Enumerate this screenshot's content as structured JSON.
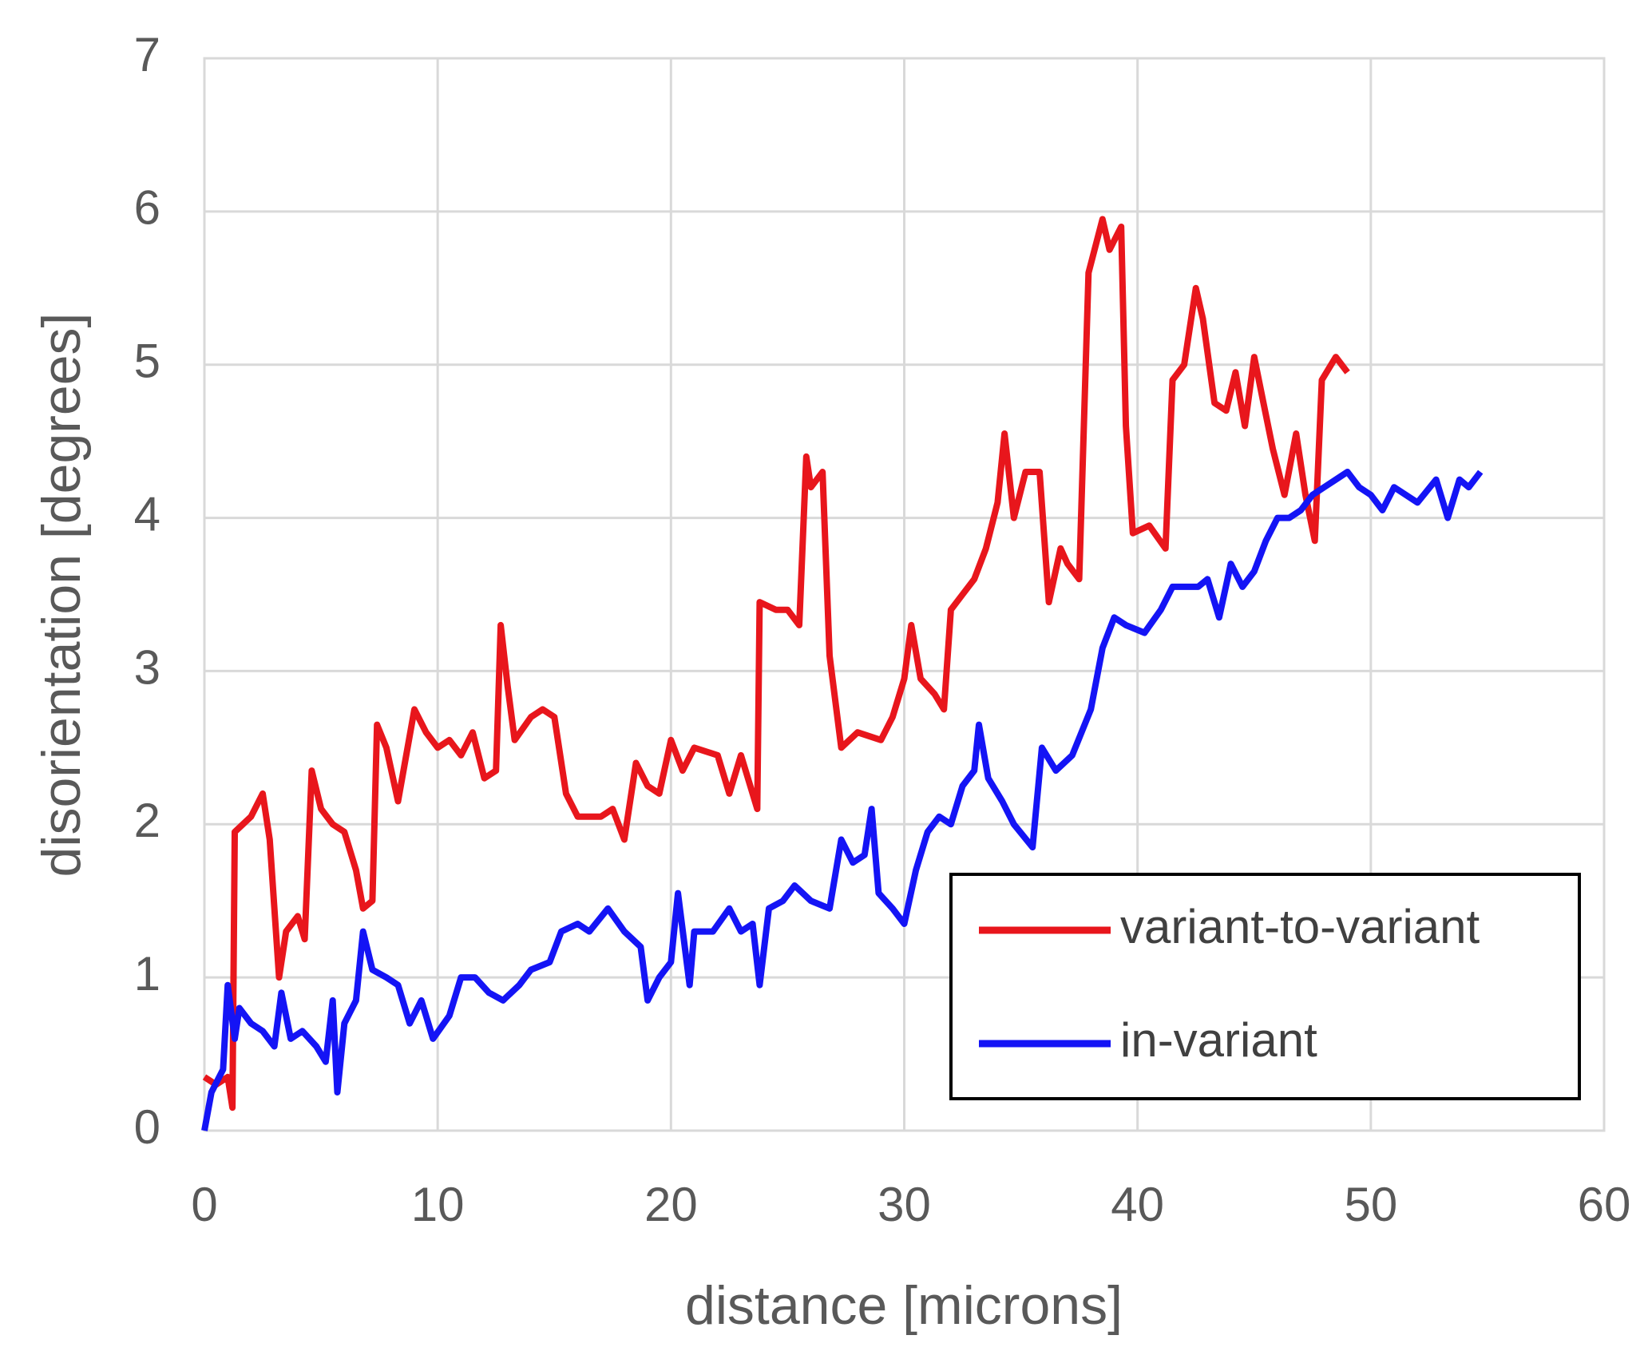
{
  "chart_data": {
    "type": "line",
    "xlabel": "distance [microns]",
    "ylabel": "disorientation [degrees]",
    "xlim": [
      0,
      60
    ],
    "xticks": [
      0,
      10,
      20,
      30,
      40,
      50,
      60
    ],
    "ylim": [
      0,
      7
    ],
    "yticks": [
      0,
      1,
      2,
      3,
      4,
      5,
      6,
      7
    ],
    "grid": true,
    "legend": "lower right",
    "series": [
      {
        "name": "variant-to-variant",
        "color": "#e8161c",
        "x": [
          0,
          0.5,
          1,
          1.2,
          1.3,
          2,
          2.5,
          2.8,
          3.2,
          3.5,
          4,
          4.3,
          4.6,
          5,
          5.5,
          6,
          6.5,
          6.8,
          7.2,
          7.4,
          7.8,
          8.3,
          9,
          9.5,
          10,
          10.5,
          11,
          11.5,
          12,
          12.5,
          12.7,
          13,
          13.3,
          14,
          14.5,
          15,
          15.5,
          16,
          17,
          17.5,
          18,
          18.5,
          19,
          19.5,
          20,
          20.5,
          21,
          22,
          22.5,
          23,
          23.7,
          23.8,
          24.5,
          25,
          25.5,
          25.8,
          26,
          26.5,
          26.8,
          27.3,
          28,
          29,
          29.5,
          30,
          30.3,
          30.7,
          31.3,
          31.7,
          32,
          32.5,
          33,
          33.5,
          34,
          34.3,
          34.7,
          35.2,
          35.8,
          36.2,
          36.7,
          37,
          37.5,
          37.9,
          38.5,
          38.8,
          39.3,
          39.5,
          39.8,
          40.5,
          41.2,
          41.5,
          42,
          42.5,
          42.8,
          43.3,
          43.8,
          44.2,
          44.6,
          45,
          45.4,
          45.8,
          46.3,
          46.8,
          47.2,
          47.6,
          47.9,
          48.5,
          49
        ],
        "values": [
          0.35,
          0.3,
          0.35,
          0.15,
          1.95,
          2.05,
          2.2,
          1.9,
          1.0,
          1.3,
          1.4,
          1.25,
          2.35,
          2.1,
          2.0,
          1.95,
          1.7,
          1.45,
          1.5,
          2.65,
          2.5,
          2.15,
          2.75,
          2.6,
          2.5,
          2.55,
          2.45,
          2.6,
          2.3,
          2.35,
          3.3,
          2.9,
          2.55,
          2.7,
          2.75,
          2.7,
          2.2,
          2.05,
          2.05,
          2.1,
          1.9,
          2.4,
          2.25,
          2.2,
          2.55,
          2.35,
          2.5,
          2.45,
          2.2,
          2.45,
          2.1,
          3.45,
          3.4,
          3.4,
          3.3,
          4.4,
          4.2,
          4.3,
          3.1,
          2.5,
          2.6,
          2.55,
          2.7,
          2.95,
          3.3,
          2.95,
          2.85,
          2.75,
          3.4,
          3.5,
          3.6,
          3.8,
          4.1,
          4.55,
          4.0,
          4.3,
          4.3,
          3.45,
          3.8,
          3.7,
          3.6,
          5.6,
          5.95,
          5.75,
          5.9,
          4.6,
          3.9,
          3.95,
          3.8,
          4.9,
          5.0,
          5.5,
          5.3,
          4.75,
          4.7,
          4.95,
          4.6,
          5.05,
          4.75,
          4.45,
          4.15,
          4.55,
          4.15,
          3.85,
          4.9,
          5.05,
          4.95
        ]
      },
      {
        "name": "in-variant",
        "color": "#1414f5",
        "x": [
          0,
          0.3,
          0.8,
          1,
          1.3,
          1.5,
          2,
          2.5,
          3,
          3.3,
          3.7,
          4.2,
          4.8,
          5.2,
          5.5,
          5.7,
          6,
          6.5,
          6.8,
          7.2,
          7.8,
          8.3,
          8.8,
          9.3,
          9.8,
          10.5,
          11,
          11.6,
          12.2,
          12.8,
          13.5,
          14,
          14.8,
          15.3,
          16,
          16.5,
          17.3,
          18,
          18.7,
          19,
          19.5,
          20,
          20.3,
          20.8,
          21,
          21.8,
          22.5,
          23,
          23.5,
          23.8,
          24.2,
          24.8,
          25.3,
          26,
          26.8,
          27.3,
          27.8,
          28.3,
          28.6,
          28.9,
          29.5,
          30,
          30.5,
          31,
          31.5,
          32,
          32.5,
          33,
          33.2,
          33.6,
          34.2,
          34.7,
          35.5,
          35.9,
          36.5,
          37.2,
          38,
          38.5,
          39,
          39.5,
          40.3,
          41,
          41.5,
          42,
          42.6,
          43,
          43.5,
          44,
          44.5,
          45,
          45.5,
          46,
          46.5,
          47,
          47.5,
          48,
          48.5,
          49,
          49.5,
          50,
          50.5,
          51,
          52,
          52.8,
          53.3,
          53.8,
          54.2,
          54.7
        ],
        "values": [
          0,
          0.25,
          0.4,
          0.95,
          0.6,
          0.8,
          0.7,
          0.65,
          0.55,
          0.9,
          0.6,
          0.65,
          0.55,
          0.45,
          0.85,
          0.25,
          0.7,
          0.85,
          1.3,
          1.05,
          1.0,
          0.95,
          0.7,
          0.85,
          0.6,
          0.75,
          1.0,
          1.0,
          0.9,
          0.85,
          0.95,
          1.05,
          1.1,
          1.3,
          1.35,
          1.3,
          1.45,
          1.3,
          1.2,
          0.85,
          1.0,
          1.1,
          1.55,
          0.95,
          1.3,
          1.3,
          1.45,
          1.3,
          1.35,
          0.95,
          1.45,
          1.5,
          1.6,
          1.5,
          1.45,
          1.9,
          1.75,
          1.8,
          2.1,
          1.55,
          1.45,
          1.35,
          1.7,
          1.95,
          2.05,
          2.0,
          2.25,
          2.35,
          2.65,
          2.3,
          2.15,
          2.0,
          1.85,
          2.5,
          2.35,
          2.45,
          2.75,
          3.15,
          3.35,
          3.3,
          3.25,
          3.4,
          3.55,
          3.55,
          3.55,
          3.6,
          3.35,
          3.7,
          3.55,
          3.65,
          3.85,
          4.0,
          4.0,
          4.05,
          4.15,
          4.2,
          4.25,
          4.3,
          4.2,
          4.15,
          4.05,
          4.2,
          4.1,
          4.25,
          4.0,
          4.25,
          4.2,
          4.3
        ]
      }
    ]
  }
}
